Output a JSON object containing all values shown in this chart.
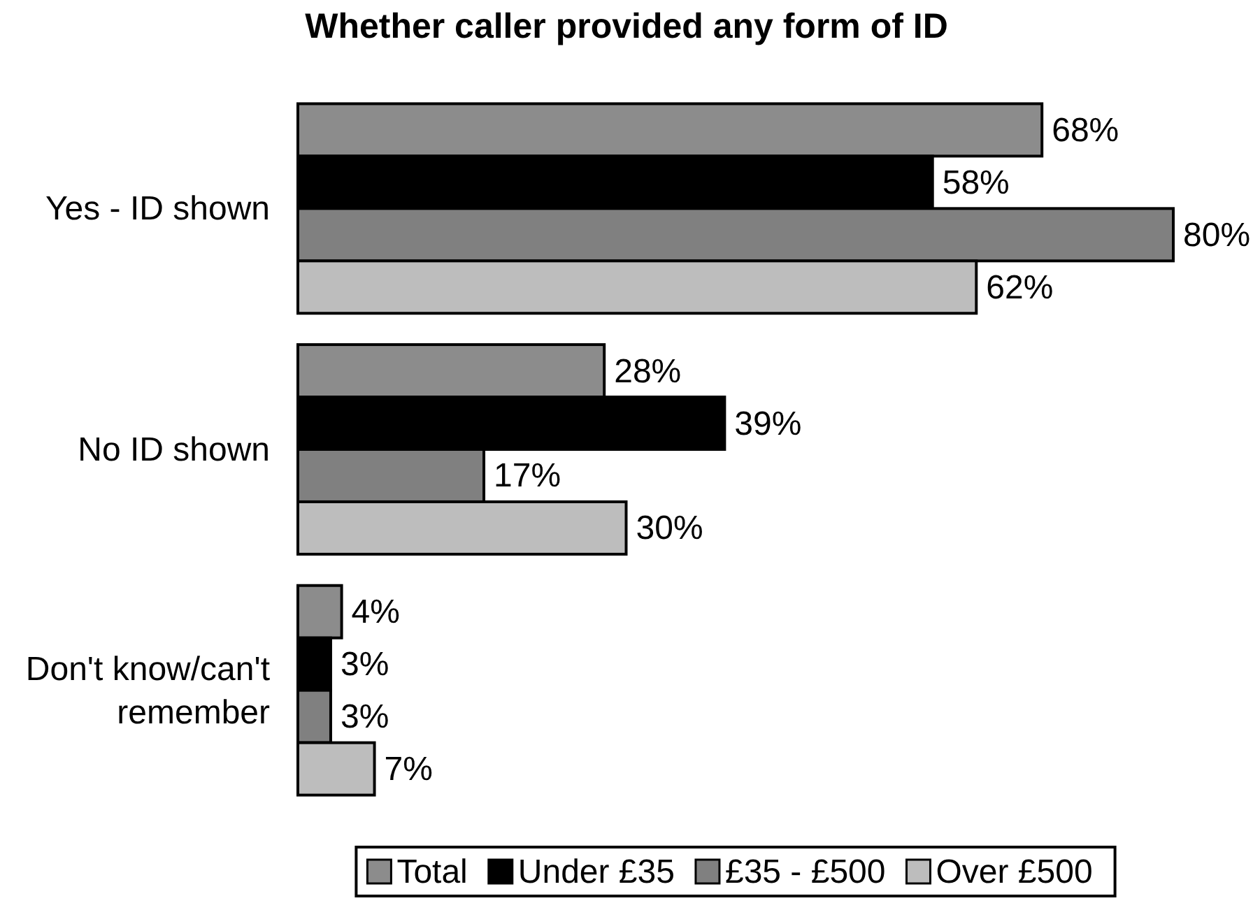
{
  "chart_data": {
    "type": "bar",
    "orientation": "horizontal",
    "title": "Whether caller provided any form of ID",
    "categories": [
      "Yes - ID shown",
      "No ID shown",
      "Don't know/can't remember"
    ],
    "series": [
      {
        "name": "Total",
        "color": "#8c8c8c",
        "values": [
          68,
          28,
          4
        ],
        "value_labels": [
          "68%",
          "28%",
          "4%"
        ]
      },
      {
        "name": "Under £35",
        "color": "#000000",
        "values": [
          58,
          39,
          3
        ],
        "value_labels": [
          "58%",
          "39%",
          "3%"
        ]
      },
      {
        "name": "£35 - £500",
        "color": "#808080",
        "values": [
          80,
          17,
          3
        ],
        "value_labels": [
          "80%",
          "17%",
          "3%"
        ]
      },
      {
        "name": "Over £500",
        "color": "#bdbdbd",
        "values": [
          62,
          30,
          7
        ],
        "value_labels": [
          "62%",
          "30%",
          "7%"
        ]
      }
    ],
    "tick_labels": "y",
    "legend": "bottom"
  }
}
